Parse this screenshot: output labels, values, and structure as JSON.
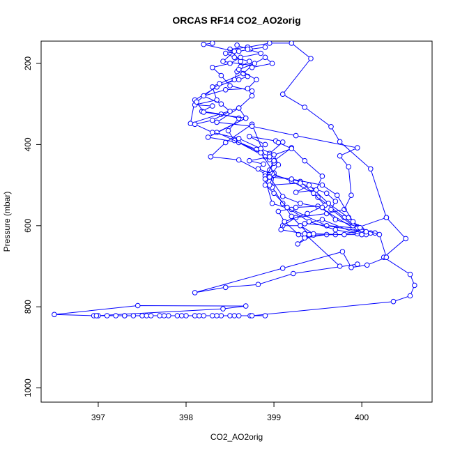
{
  "chart_data": {
    "type": "line",
    "title": "ORCAS RF14 CO2_AO2orig",
    "xlabel": "CO2_AO2orig",
    "ylabel": "Pressure (mbar)",
    "xlim": [
      396.35,
      400.8
    ],
    "ylim": [
      1035,
      145
    ],
    "y_reversed": true,
    "x_ticks": [
      397,
      398,
      399,
      400
    ],
    "y_ticks": [
      200,
      400,
      600,
      800,
      1000
    ],
    "grid": false,
    "marker": "open-circle",
    "color": "#0000ff",
    "series": [
      {
        "points": [
          [
            398.9,
            822
          ],
          [
            398.73,
            822
          ],
          [
            398.6,
            822
          ],
          [
            398.5,
            822
          ],
          [
            398.4,
            822
          ],
          [
            398.3,
            822
          ],
          [
            398.2,
            822
          ],
          [
            398.1,
            822
          ],
          [
            398.0,
            822
          ],
          [
            397.9,
            822
          ],
          [
            397.8,
            822
          ],
          [
            397.7,
            822
          ],
          [
            397.6,
            822
          ],
          [
            397.5,
            822
          ],
          [
            397.4,
            822
          ],
          [
            397.3,
            822
          ],
          [
            397.2,
            822
          ],
          [
            397.1,
            822
          ],
          [
            397.0,
            822
          ],
          [
            396.95,
            822
          ],
          [
            396.5,
            819
          ],
          [
            397.45,
            797
          ],
          [
            398.68,
            798
          ],
          [
            398.42,
            805
          ],
          [
            396.98,
            822
          ],
          [
            397.3,
            822
          ],
          [
            397.55,
            822
          ],
          [
            397.75,
            822
          ],
          [
            397.95,
            822
          ],
          [
            398.15,
            822
          ],
          [
            398.35,
            822
          ],
          [
            398.55,
            822
          ],
          [
            398.75,
            822
          ],
          [
            400.36,
            787
          ],
          [
            400.55,
            773
          ],
          [
            400.6,
            747
          ],
          [
            400.55,
            720
          ],
          [
            400.25,
            678
          ],
          [
            400.5,
            632
          ],
          [
            400.28,
            580
          ],
          [
            400.1,
            460
          ],
          [
            399.75,
            393
          ],
          [
            399.65,
            356
          ],
          [
            399.35,
            308
          ],
          [
            399.1,
            276
          ],
          [
            399.42,
            188
          ],
          [
            399.2,
            150
          ],
          [
            398.95,
            150
          ],
          [
            398.7,
            160
          ]
        ]
      },
      {
        "points": [
          [
            398.7,
            160
          ],
          [
            398.5,
            165
          ],
          [
            398.62,
            195
          ],
          [
            398.55,
            240
          ],
          [
            398.35,
            258
          ],
          [
            398.1,
            290
          ],
          [
            398.05,
            348
          ],
          [
            398.6,
            310
          ],
          [
            398.68,
            335
          ],
          [
            398.25,
            382
          ],
          [
            398.6,
            395
          ],
          [
            398.9,
            430
          ],
          [
            398.75,
            350
          ],
          [
            398.45,
            395
          ],
          [
            398.28,
            430
          ],
          [
            398.6,
            438
          ],
          [
            398.9,
            472
          ],
          [
            399.3,
            491
          ],
          [
            399.5,
            530
          ],
          [
            399.8,
            580
          ],
          [
            399.95,
            605
          ],
          [
            400.15,
            618
          ],
          [
            400.0,
            622
          ],
          [
            399.6,
            622
          ],
          [
            399.35,
            630
          ],
          [
            399.28,
            622
          ],
          [
            399.12,
            590
          ],
          [
            399.05,
            565
          ],
          [
            399.25,
            555
          ],
          [
            399.5,
            552
          ],
          [
            399.9,
            605
          ],
          [
            399.35,
            595
          ],
          [
            399.55,
            585
          ],
          [
            399.95,
            620
          ],
          [
            400.05,
            622
          ],
          [
            399.7,
            622
          ],
          [
            399.45,
            623
          ],
          [
            399.27,
            645
          ],
          [
            399.4,
            622
          ],
          [
            399.2,
            577
          ],
          [
            399.1,
            545
          ],
          [
            398.98,
            505
          ],
          [
            399.0,
            475
          ],
          [
            398.9,
            478
          ],
          [
            398.95,
            463
          ],
          [
            399.0,
            446
          ],
          [
            398.95,
            437
          ],
          [
            398.95,
            422
          ],
          [
            399.1,
            394
          ],
          [
            399.02,
            391
          ],
          [
            398.72,
            380
          ],
          [
            398.9,
            400
          ],
          [
            398.8,
            412
          ],
          [
            398.55,
            390
          ],
          [
            398.48,
            366
          ],
          [
            398.6,
            335
          ],
          [
            398.4,
            325
          ],
          [
            398.18,
            318
          ],
          [
            398.3,
            305
          ],
          [
            398.1,
            302
          ],
          [
            398.35,
            290
          ],
          [
            398.3,
            258
          ],
          [
            398.6,
            240
          ],
          [
            398.7,
            232
          ],
          [
            398.58,
            220
          ],
          [
            398.62,
            208
          ],
          [
            398.72,
            195
          ],
          [
            398.55,
            185
          ],
          [
            398.45,
            175
          ],
          [
            398.6,
            170
          ],
          [
            398.73,
            165
          ],
          [
            398.9,
            160
          ]
        ]
      },
      {
        "points": [
          [
            398.3,
            150
          ],
          [
            398.2,
            153
          ],
          [
            398.55,
            170
          ],
          [
            398.42,
            195
          ],
          [
            398.75,
            205
          ],
          [
            398.65,
            225
          ],
          [
            398.38,
            250
          ],
          [
            398.12,
            295
          ],
          [
            398.2,
            320
          ],
          [
            398.68,
            335
          ],
          [
            398.35,
            370
          ],
          [
            398.85,
            420
          ],
          [
            399.0,
            470
          ],
          [
            398.95,
            500
          ],
          [
            399.3,
            495
          ],
          [
            399.6,
            520
          ],
          [
            399.7,
            540
          ],
          [
            399.65,
            560
          ],
          [
            399.9,
            600
          ],
          [
            400.1,
            618
          ],
          [
            399.6,
            600
          ],
          [
            399.2,
            560
          ],
          [
            398.98,
            545
          ],
          [
            398.9,
            485
          ],
          [
            399.0,
            440
          ],
          [
            399.2,
            408
          ],
          [
            399.35,
            440
          ],
          [
            399.55,
            478
          ],
          [
            399.48,
            512
          ],
          [
            399.25,
            518
          ],
          [
            399.4,
            500
          ],
          [
            399.62,
            545
          ],
          [
            399.85,
            580
          ],
          [
            399.95,
            603
          ],
          [
            400.0,
            610
          ],
          [
            399.8,
            622
          ],
          [
            399.45,
            620
          ],
          [
            399.3,
            600
          ],
          [
            399.1,
            600
          ],
          [
            399.25,
            580
          ],
          [
            399.6,
            570
          ],
          [
            399.8,
            560
          ],
          [
            399.88,
            525
          ],
          [
            399.85,
            455
          ],
          [
            399.75,
            428
          ],
          [
            399.95,
            408
          ],
          [
            399.25,
            378
          ],
          [
            398.75,
            355
          ],
          [
            398.35,
            345
          ],
          [
            398.6,
            310
          ],
          [
            398.75,
            280
          ],
          [
            398.75,
            268
          ],
          [
            398.5,
            255
          ],
          [
            398.4,
            230
          ],
          [
            398.3,
            210
          ],
          [
            398.5,
            200
          ],
          [
            398.62,
            185
          ],
          [
            398.85,
            175
          ],
          [
            398.7,
            165
          ],
          [
            398.58,
            155
          ]
        ]
      },
      {
        "points": [
          [
            400.28,
            580
          ],
          [
            399.95,
            605
          ],
          [
            400.2,
            622
          ],
          [
            400.28,
            678
          ],
          [
            400.06,
            697
          ],
          [
            399.88,
            703
          ],
          [
            399.78,
            664
          ],
          [
            399.1,
            705
          ],
          [
            398.1,
            765
          ],
          [
            398.45,
            752
          ],
          [
            398.82,
            745
          ],
          [
            399.22,
            718
          ],
          [
            399.95,
            695
          ]
        ]
      },
      {
        "points": [
          [
            399.75,
            700
          ],
          [
            399.35,
            620
          ],
          [
            399.08,
            610
          ],
          [
            399.12,
            590
          ],
          [
            399.38,
            570
          ],
          [
            399.58,
            550
          ],
          [
            399.45,
            520
          ],
          [
            399.2,
            490
          ],
          [
            398.98,
            472
          ],
          [
            398.82,
            460
          ],
          [
            398.88,
            448
          ],
          [
            398.72,
            440
          ],
          [
            398.95,
            430
          ],
          [
            399.2,
            410
          ],
          [
            399.05,
            395
          ]
        ]
      },
      {
        "points": [
          [
            400.0,
            622
          ],
          [
            399.7,
            610
          ],
          [
            399.4,
            590
          ],
          [
            399.15,
            555
          ],
          [
            399.0,
            520
          ],
          [
            398.9,
            500
          ],
          [
            398.95,
            480
          ],
          [
            399.2,
            485
          ],
          [
            399.55,
            500
          ],
          [
            399.72,
            525
          ],
          [
            399.9,
            590
          ],
          [
            400.05,
            615
          ]
        ]
      },
      {
        "points": [
          [
            399.98,
            605
          ],
          [
            399.7,
            585
          ],
          [
            399.55,
            555
          ],
          [
            399.3,
            545
          ],
          [
            399.1,
            528
          ],
          [
            398.95,
            480
          ],
          [
            399.05,
            450
          ],
          [
            399.0,
            425
          ],
          [
            398.85,
            410
          ],
          [
            398.6,
            385
          ],
          [
            398.3,
            370
          ],
          [
            398.1,
            350
          ],
          [
            398.3,
            340
          ],
          [
            398.5,
            318
          ],
          [
            398.4,
            300
          ],
          [
            398.2,
            280
          ],
          [
            398.45,
            265
          ],
          [
            398.7,
            262
          ],
          [
            398.8,
            240
          ],
          [
            398.6,
            215
          ],
          [
            398.78,
            200
          ],
          [
            398.9,
            185
          ],
          [
            398.98,
            200
          ],
          [
            398.75,
            210
          ]
        ]
      }
    ]
  }
}
